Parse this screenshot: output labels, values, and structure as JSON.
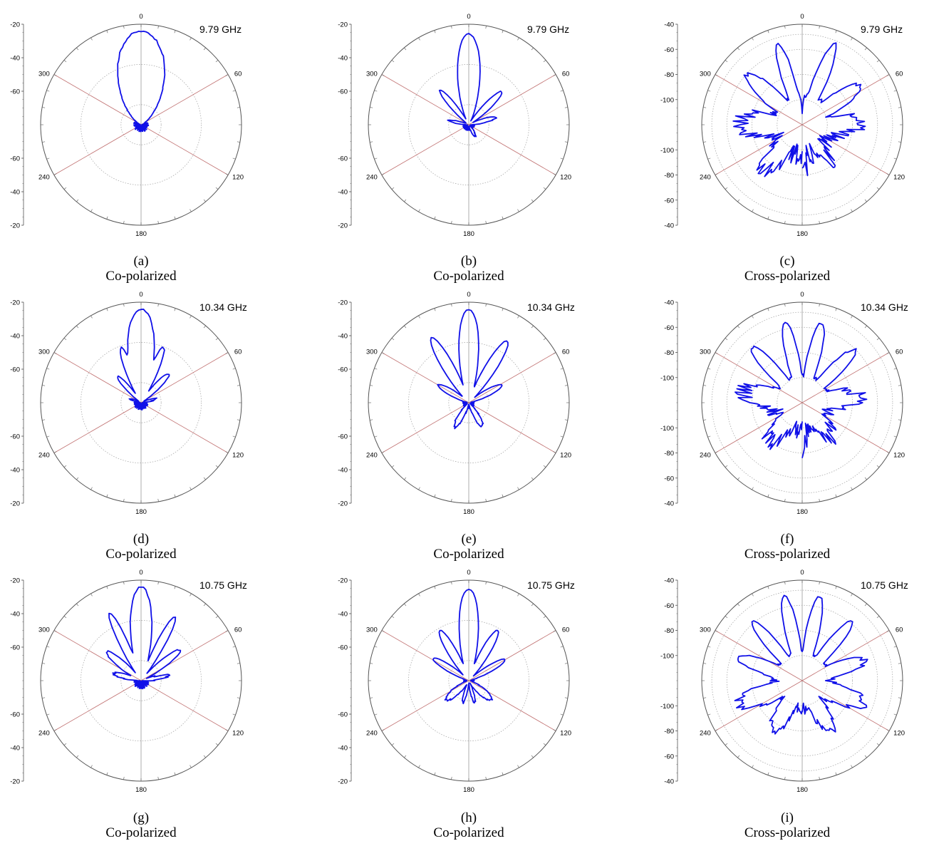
{
  "colors": {
    "trace": "#1010e8",
    "spoke": "#c07070",
    "grid": "#aaaaaa",
    "ring": "#555555",
    "axis": "#999999",
    "text": "#000000"
  },
  "chart_data": [
    {
      "id": "a",
      "type": "polar",
      "caption_letter": "(a)",
      "caption_text": "Co-polarized",
      "freq_label": "9.79 GHz",
      "angle_labels": [
        "0",
        "60",
        "120",
        "180",
        "240",
        "300"
      ],
      "radial_ticks_top": [
        "-20",
        "-40",
        "-60"
      ],
      "radial_ticks_bottom": [
        "-60",
        "-40",
        "-20"
      ],
      "cross": false,
      "lobes": [
        [
          0,
          1.0,
          54
        ],
        [
          38,
          0.12,
          22
        ],
        [
          -38,
          0.12,
          22
        ],
        [
          75,
          0.05,
          12
        ],
        [
          -75,
          0.05,
          12
        ]
      ],
      "base": 0.04,
      "noise": 0.08
    },
    {
      "id": "b",
      "type": "polar",
      "caption_letter": "(b)",
      "caption_text": "Co-polarized",
      "freq_label": "9.79 GHz",
      "angle_labels": [
        "0",
        "60",
        "120",
        "180",
        "240",
        "300"
      ],
      "radial_ticks_top": [
        "-20",
        "-40",
        "-60"
      ],
      "radial_ticks_bottom": [
        "-60",
        "-40",
        "-20"
      ],
      "cross": false,
      "lobes": [
        [
          0,
          0.97,
          26
        ],
        [
          -40,
          0.48,
          14
        ],
        [
          45,
          0.5,
          16
        ],
        [
          75,
          0.3,
          16
        ],
        [
          -78,
          0.22,
          14
        ],
        [
          150,
          0.13,
          22
        ]
      ],
      "base": 0.04,
      "noise": 0.05
    },
    {
      "id": "c",
      "type": "polar",
      "caption_letter": "(c)",
      "caption_text": "Cross-polarized",
      "freq_label": "9.79 GHz",
      "angle_labels": [
        "0",
        "60",
        "120",
        "180",
        "240",
        "300"
      ],
      "radial_ticks_top": [
        "-40",
        "-60",
        "-80",
        "-100"
      ],
      "radial_ticks_bottom": [
        "-100",
        "-80",
        "-60",
        "-40"
      ],
      "cross": true,
      "lobes": [
        [
          -17,
          0.9,
          15
        ],
        [
          22,
          0.93,
          16
        ],
        [
          -48,
          0.8,
          24
        ],
        [
          56,
          0.75,
          24
        ],
        [
          -90,
          0.68,
          40
        ],
        [
          90,
          0.6,
          40
        ],
        [
          -140,
          0.62,
          35
        ],
        [
          145,
          0.48,
          30
        ],
        [
          180,
          0.55,
          20
        ]
      ],
      "base": 0.32,
      "noise": 0.22,
      "null_width": 4,
      "null_depth": 0.12
    },
    {
      "id": "d",
      "type": "polar",
      "caption_letter": "(d)",
      "caption_text": "Co-polarized",
      "freq_label": "10.34 GHz",
      "angle_labels": [
        "0",
        "60",
        "120",
        "180",
        "240",
        "300"
      ],
      "radial_ticks_top": [
        "-20",
        "-40",
        "-60"
      ],
      "radial_ticks_bottom": [
        "-60",
        "-40",
        "-20"
      ],
      "cross": false,
      "lobes": [
        [
          0,
          1.0,
          30
        ],
        [
          -20,
          0.63,
          14
        ],
        [
          22,
          0.64,
          14
        ],
        [
          -42,
          0.38,
          14
        ],
        [
          44,
          0.43,
          16
        ],
        [
          75,
          0.15,
          14
        ],
        [
          -70,
          0.12,
          12
        ]
      ],
      "base": 0.04,
      "noise": 0.08
    },
    {
      "id": "e",
      "type": "polar",
      "caption_letter": "(e)",
      "caption_text": "Co-polarized",
      "freq_label": "10.34 GHz",
      "angle_labels": [
        "0",
        "60",
        "120",
        "180",
        "240",
        "300"
      ],
      "radial_ticks_top": [
        "-20",
        "-40",
        "-60"
      ],
      "radial_ticks_bottom": [
        "-60",
        "-40",
        "-20"
      ],
      "cross": false,
      "lobes": [
        [
          0,
          1.0,
          22
        ],
        [
          -30,
          0.8,
          16
        ],
        [
          32,
          0.78,
          16
        ],
        [
          -60,
          0.38,
          18
        ],
        [
          62,
          0.4,
          18
        ],
        [
          -150,
          0.3,
          22
        ],
        [
          150,
          0.28,
          22
        ]
      ],
      "base": 0.04,
      "noise": 0.05
    },
    {
      "id": "f",
      "type": "polar",
      "caption_letter": "(f)",
      "caption_text": "Cross-polarized",
      "freq_label": "10.34 GHz",
      "angle_labels": [
        "0",
        "60",
        "120",
        "180",
        "240",
        "300"
      ],
      "radial_ticks_top": [
        "-40",
        "-60",
        "-80",
        "-100"
      ],
      "radial_ticks_bottom": [
        "-100",
        "-80",
        "-60",
        "-40"
      ],
      "cross": true,
      "lobes": [
        [
          -12,
          0.88,
          16
        ],
        [
          14,
          0.88,
          16
        ],
        [
          -42,
          0.8,
          18
        ],
        [
          45,
          0.8,
          18
        ],
        [
          -80,
          0.65,
          35
        ],
        [
          85,
          0.62,
          35
        ],
        [
          -140,
          0.55,
          35
        ],
        [
          140,
          0.5,
          35
        ],
        [
          180,
          0.5,
          20
        ]
      ],
      "base": 0.3,
      "noise": 0.2,
      "null_width": 4,
      "null_depth": 0.3
    },
    {
      "id": "g",
      "type": "polar",
      "caption_letter": "(g)",
      "caption_text": "Co-polarized",
      "freq_label": "10.75 GHz",
      "angle_labels": [
        "0",
        "60",
        "120",
        "180",
        "240",
        "300"
      ],
      "radial_ticks_top": [
        "-20",
        "-40",
        "-60"
      ],
      "radial_ticks_bottom": [
        "-60",
        "-40",
        "-20"
      ],
      "cross": false,
      "lobes": [
        [
          0,
          1.0,
          24
        ],
        [
          -25,
          0.8,
          12
        ],
        [
          28,
          0.78,
          12
        ],
        [
          -50,
          0.48,
          18
        ],
        [
          52,
          0.53,
          16
        ],
        [
          -75,
          0.32,
          16
        ],
        [
          80,
          0.28,
          16
        ]
      ],
      "base": 0.04,
      "noise": 0.1
    },
    {
      "id": "h",
      "type": "polar",
      "caption_letter": "(h)",
      "caption_text": "Co-polarized",
      "freq_label": "10.75 GHz",
      "angle_labels": [
        "0",
        "60",
        "120",
        "180",
        "240",
        "300"
      ],
      "radial_ticks_top": [
        "-20",
        "-40",
        "-60"
      ],
      "radial_ticks_bottom": [
        "-60",
        "-40",
        "-20"
      ],
      "cross": false,
      "lobes": [
        [
          0,
          0.98,
          22
        ],
        [
          -30,
          0.62,
          16
        ],
        [
          30,
          0.62,
          16
        ],
        [
          -58,
          0.45,
          16
        ],
        [
          60,
          0.45,
          16
        ],
        [
          -130,
          0.32,
          26
        ],
        [
          130,
          0.32,
          26
        ],
        [
          -165,
          0.25,
          14
        ],
        [
          165,
          0.25,
          14
        ]
      ],
      "base": 0.04,
      "noise": 0.04
    },
    {
      "id": "i",
      "type": "polar",
      "caption_letter": "(i)",
      "caption_text": "Cross-polarized",
      "freq_label": "10.75 GHz",
      "angle_labels": [
        "0",
        "60",
        "120",
        "180",
        "240",
        "300"
      ],
      "radial_ticks_top": [
        "-40",
        "-60",
        "-80",
        "-100"
      ],
      "radial_ticks_bottom": [
        "-100",
        "-80",
        "-60",
        "-40"
      ],
      "cross": true,
      "lobes": [
        [
          -12,
          0.92,
          16
        ],
        [
          12,
          0.92,
          16
        ],
        [
          -40,
          0.83,
          16
        ],
        [
          40,
          0.83,
          16
        ],
        [
          -70,
          0.72,
          22
        ],
        [
          72,
          0.72,
          22
        ],
        [
          -110,
          0.72,
          30
        ],
        [
          110,
          0.7,
          30
        ],
        [
          -150,
          0.62,
          30
        ],
        [
          150,
          0.62,
          30
        ]
      ],
      "base": 0.3,
      "noise": 0.12,
      "null_width": 4,
      "null_depth": 0.4
    }
  ]
}
